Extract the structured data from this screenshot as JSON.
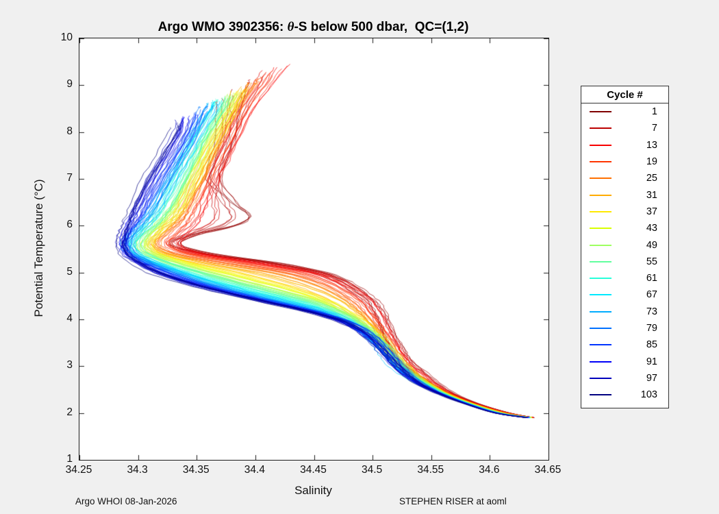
{
  "figure": {
    "background": "#f0f0f0",
    "title": {
      "prefix": "Argo WMO 3902356: ",
      "theta": "θ",
      "suffix": "-S below 500 dbar,  QC=(1,2)"
    },
    "footer_left": "Argo WHOI 08-Jan-2026",
    "footer_right": "STEPHEN RISER at aoml"
  },
  "chart_data": {
    "type": "line",
    "title": "Argo WMO 3902356: θ-S below 500 dbar,  QC=(1,2)",
    "xlabel": "Salinity",
    "ylabel": "Potential Temperature (°C)",
    "xlim": [
      34.25,
      34.65
    ],
    "ylim": [
      1,
      10
    ],
    "xticks": [
      "34.25",
      "34.3",
      "34.35",
      "34.4",
      "34.45",
      "34.5",
      "34.55",
      "34.6",
      "34.65"
    ],
    "yticks": [
      "1",
      "2",
      "3",
      "4",
      "5",
      "6",
      "7",
      "8",
      "9",
      "10"
    ],
    "grid": false,
    "colormap": "jet-reversed",
    "cycles_total": 103,
    "legend": {
      "title": "Cycle #",
      "position": "right-outside",
      "entries": [
        {
          "label": "1",
          "color": "#800000"
        },
        {
          "label": "7",
          "color": "#bc0000"
        },
        {
          "label": "13",
          "color": "#f80000"
        },
        {
          "label": "19",
          "color": "#ff3400"
        },
        {
          "label": "25",
          "color": "#ff7000"
        },
        {
          "label": "31",
          "color": "#ffac00"
        },
        {
          "label": "37",
          "color": "#ffe900"
        },
        {
          "label": "43",
          "color": "#d9ff00"
        },
        {
          "label": "49",
          "color": "#9eff61"
        },
        {
          "label": "55",
          "color": "#61ff9e"
        },
        {
          "label": "61",
          "color": "#26ffd9"
        },
        {
          "label": "67",
          "color": "#00e9ff"
        },
        {
          "label": "73",
          "color": "#00acff"
        },
        {
          "label": "79",
          "color": "#0070ff"
        },
        {
          "label": "85",
          "color": "#0034ff"
        },
        {
          "label": "91",
          "color": "#0000f8"
        },
        {
          "label": "97",
          "color": "#0000bc"
        },
        {
          "label": "103",
          "color": "#000080"
        }
      ]
    },
    "theta_grid": [
      9.5,
      9.0,
      8.5,
      8.0,
      7.5,
      7.0,
      6.5,
      6.2,
      6.0,
      5.8,
      5.6,
      5.4,
      5.2,
      5.0,
      4.8,
      4.6,
      4.4,
      4.2,
      4.0,
      3.8,
      3.6,
      3.4,
      3.2,
      3.0,
      2.8,
      2.6,
      2.4,
      2.2,
      2.0,
      1.9
    ],
    "profiles": [
      {
        "cycle": 1,
        "top": 8.65,
        "s": [
          34.37,
          34.372,
          34.372,
          34.374,
          34.37,
          34.366,
          34.386,
          34.402,
          34.388,
          34.35,
          34.332,
          34.362,
          34.42,
          34.458,
          34.478,
          34.49,
          34.5,
          34.506,
          34.51,
          34.514,
          34.518,
          34.523,
          34.528,
          34.535,
          34.545,
          34.556,
          34.57,
          34.59,
          34.617,
          34.638
        ]
      },
      {
        "cycle": 13,
        "top": 9.45,
        "s": [
          34.425,
          34.41,
          34.395,
          34.385,
          34.375,
          34.365,
          34.355,
          34.349,
          34.344,
          34.336,
          34.33,
          34.35,
          34.4,
          34.448,
          34.47,
          34.484,
          34.494,
          34.5,
          34.505,
          34.509,
          34.514,
          34.519,
          34.524,
          34.531,
          34.541,
          34.552,
          34.567,
          34.587,
          34.615,
          34.637
        ]
      },
      {
        "cycle": 25,
        "top": 9.05,
        "s": [
          34.41,
          34.4,
          34.386,
          34.375,
          34.364,
          34.354,
          34.344,
          34.338,
          34.331,
          34.322,
          34.316,
          34.33,
          34.37,
          34.42,
          34.45,
          34.468,
          34.481,
          34.49,
          34.498,
          34.505,
          34.51,
          34.516,
          34.521,
          34.529,
          34.539,
          34.551,
          34.566,
          34.586,
          34.613,
          34.636
        ]
      },
      {
        "cycle": 37,
        "top": 8.9,
        "s": [
          34.4,
          34.39,
          34.38,
          34.369,
          34.359,
          34.349,
          34.339,
          34.331,
          34.322,
          34.315,
          34.31,
          34.318,
          34.345,
          34.38,
          34.412,
          34.44,
          34.461,
          34.476,
          34.489,
          34.499,
          34.506,
          34.512,
          34.518,
          34.526,
          34.536,
          34.549,
          34.564,
          34.585,
          34.611,
          34.636
        ]
      },
      {
        "cycle": 49,
        "top": 8.8,
        "s": [
          34.39,
          34.382,
          34.374,
          34.361,
          34.351,
          34.341,
          34.331,
          34.322,
          34.315,
          34.306,
          34.301,
          34.309,
          34.329,
          34.356,
          34.386,
          34.418,
          34.448,
          34.469,
          34.484,
          34.495,
          34.504,
          34.511,
          34.517,
          34.524,
          34.534,
          34.547,
          34.562,
          34.583,
          34.609,
          34.635
        ]
      },
      {
        "cycle": 61,
        "top": 8.7,
        "s": [
          34.385,
          34.376,
          34.368,
          34.356,
          34.345,
          34.335,
          34.324,
          34.316,
          34.309,
          34.301,
          34.296,
          34.301,
          34.319,
          34.344,
          34.371,
          34.401,
          34.434,
          34.461,
          34.479,
          34.492,
          34.501,
          34.509,
          34.515,
          34.522,
          34.532,
          34.545,
          34.561,
          34.582,
          34.608,
          34.634
        ]
      },
      {
        "cycle": 73,
        "top": 8.6,
        "s": [
          34.375,
          34.368,
          34.361,
          34.349,
          34.339,
          34.328,
          34.317,
          34.31,
          34.303,
          34.296,
          34.291,
          34.296,
          34.311,
          34.333,
          34.357,
          34.386,
          34.419,
          34.451,
          34.474,
          34.489,
          34.499,
          34.507,
          34.514,
          34.521,
          34.531,
          34.543,
          34.559,
          34.581,
          34.607,
          34.634
        ]
      },
      {
        "cycle": 85,
        "top": 8.4,
        "s": [
          34.36,
          34.355,
          34.35,
          34.343,
          34.331,
          34.319,
          34.308,
          34.301,
          34.295,
          34.29,
          34.288,
          34.292,
          34.304,
          34.322,
          34.345,
          34.374,
          34.408,
          34.443,
          34.471,
          34.488,
          34.499,
          34.507,
          34.514,
          34.521,
          34.53,
          34.542,
          34.559,
          34.58,
          34.606,
          34.633
        ]
      },
      {
        "cycle": 97,
        "top": 8.25,
        "s": [
          34.345,
          34.341,
          34.337,
          34.333,
          34.321,
          34.309,
          34.299,
          34.294,
          34.29,
          34.287,
          34.286,
          34.289,
          34.3,
          34.316,
          34.339,
          34.369,
          34.404,
          34.44,
          34.469,
          34.487,
          34.498,
          34.506,
          34.513,
          34.52,
          34.529,
          34.541,
          34.558,
          34.579,
          34.605,
          34.632
        ]
      },
      {
        "cycle": 103,
        "top": 8.1,
        "s": [
          34.34,
          34.336,
          34.332,
          34.328,
          34.317,
          34.306,
          34.296,
          34.291,
          34.288,
          34.285,
          34.284,
          34.287,
          34.297,
          34.312,
          34.336,
          34.366,
          34.401,
          34.437,
          34.467,
          34.486,
          34.497,
          34.505,
          34.512,
          34.519,
          34.528,
          34.54,
          34.557,
          34.578,
          34.604,
          34.631
        ]
      }
    ]
  }
}
